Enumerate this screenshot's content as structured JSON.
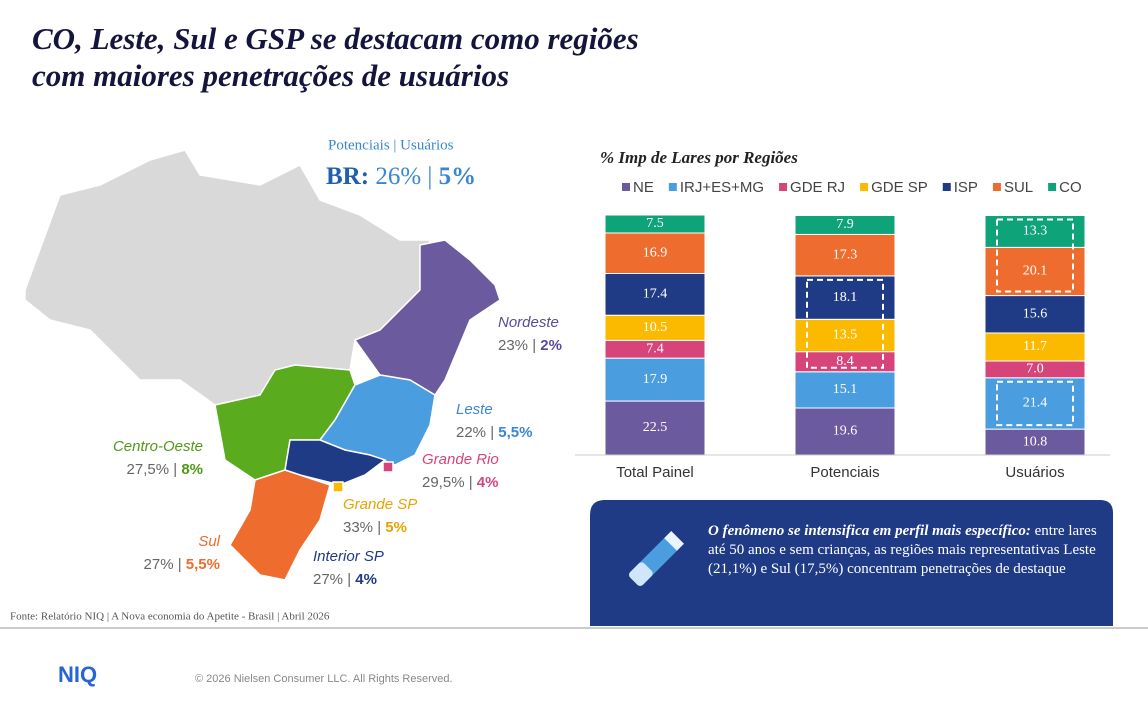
{
  "title": "CO, Leste, Sul e GSP se destacam como regiões com maiores penetrações de usuários",
  "map": {
    "header": "Potenciais | Usuários",
    "br_label": "BR:",
    "br_potential": "26% |",
    "br_users": "5%",
    "regions": [
      {
        "name": "Nordeste",
        "potential": "23% |",
        "users": "2%"
      },
      {
        "name": "Leste",
        "potential": "22% |",
        "users": "5,5%"
      },
      {
        "name": "Grande Rio",
        "potential": "29,5% |",
        "users": "4%"
      },
      {
        "name": "Grande SP",
        "potential": "33% |",
        "users": "5%"
      },
      {
        "name": "Interior SP",
        "potential": "27% |",
        "users": "4%"
      },
      {
        "name": "Sul",
        "potential": "27% |",
        "users": "5,5%"
      },
      {
        "name": "Centro-Oeste",
        "potential": "27,5% |",
        "users": "8%"
      }
    ]
  },
  "chart_data": {
    "type": "stacked_bar",
    "title": "% Imp de Lares por Regiões",
    "categories": [
      "Total Painel",
      "Potenciais",
      "Usuários"
    ],
    "series": [
      {
        "name": "NE",
        "color": "#6b5b9e",
        "values": [
          22.5,
          19.6,
          10.8
        ]
      },
      {
        "name": "IRJ+ES+MG",
        "color": "#4a9ee0",
        "values": [
          17.9,
          15.1,
          21.4
        ]
      },
      {
        "name": "GDE RJ",
        "color": "#d6447a",
        "values": [
          7.4,
          8.4,
          7.0
        ],
        "value_labels": [
          "7.4",
          "8.4",
          "7.0"
        ]
      },
      {
        "name": "GDE SP",
        "color": "#fbb900",
        "values": [
          10.5,
          13.5,
          11.7
        ]
      },
      {
        "name": "ISP",
        "color": "#1f3b86",
        "values": [
          17.4,
          18.1,
          15.6
        ]
      },
      {
        "name": "SUL",
        "color": "#ee6c2d",
        "values": [
          16.9,
          17.3,
          20.1
        ]
      },
      {
        "name": "CO",
        "color": "#0fa37a",
        "values": [
          7.5,
          7.9,
          13.3
        ]
      }
    ]
  },
  "callout": {
    "lead": "O fenômeno se intensifica em perfil mais específico:",
    "body": "entre lares até 50 anos e sem crianças, as regiões mais representativas Leste (21,1%) e Sul (17,5%) concentram penetrações de destaque"
  },
  "footer": {
    "source": "Fonte: Relatório NIQ | A Nova economia do Apetite - Brasil | Abril 2026",
    "logo": "NIQ",
    "copyright": "© 2026 Nielsen Consumer LLC. All Rights Reserved."
  }
}
